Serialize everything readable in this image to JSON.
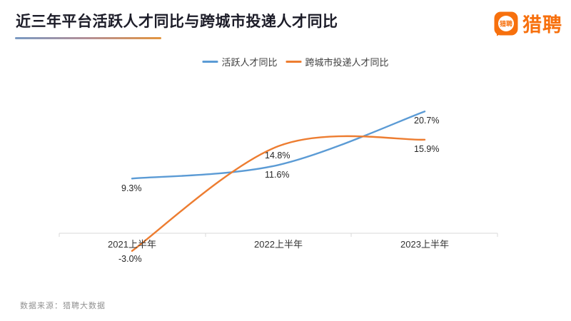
{
  "header": {
    "title": "近三年平台活跃人才同比与跨城市投递人才同比",
    "logo": {
      "wordmark": "猎聘",
      "icon_text": "猎聘",
      "brand_color": "#f7700d"
    }
  },
  "legend": [
    {
      "label": "活跃人才同比",
      "color": "#5B9BD5"
    },
    {
      "label": "跨城市投递人才同比",
      "color": "#ED7D31"
    }
  ],
  "chart_data": {
    "type": "line",
    "smooth": true,
    "legend_position": "top",
    "grid": false,
    "y_axis_visible": false,
    "categories": [
      "2021上半年",
      "2022上半年",
      "2023上半年"
    ],
    "series": [
      {
        "name": "活跃人才同比",
        "color": "#5B9BD5",
        "values": [
          9.3,
          11.6,
          20.7
        ],
        "labels": [
          "9.3%",
          "11.6%",
          "20.7%"
        ]
      },
      {
        "name": "跨城市投递人才同比",
        "color": "#ED7D31",
        "values": [
          -3.0,
          14.8,
          15.9
        ],
        "labels": [
          "-3.0%",
          "14.8%",
          "15.9%"
        ]
      }
    ]
  },
  "footer": {
    "source": "数据来源：猎聘大数据"
  }
}
